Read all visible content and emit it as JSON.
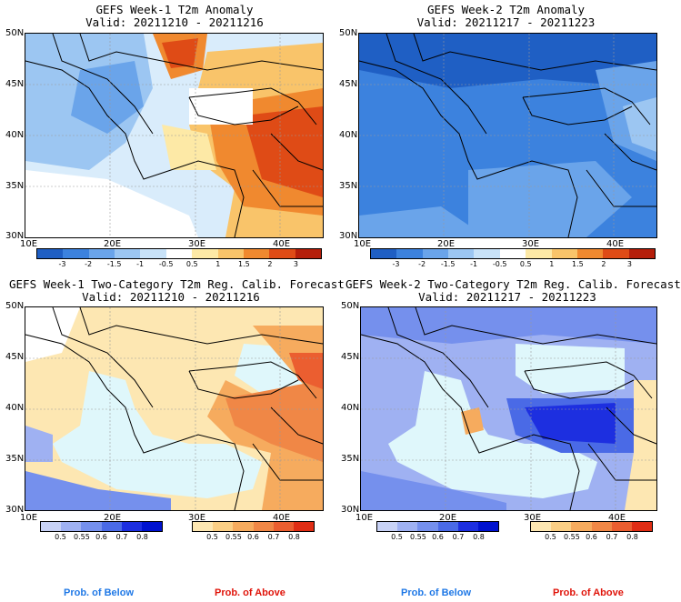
{
  "panels": [
    {
      "title": "GEFS Week-1 T2m Anomaly",
      "valid": "Valid: 20211210 - 20211216"
    },
    {
      "title": "GEFS Week-2 T2m Anomaly",
      "valid": "Valid: 20211217 - 20211223"
    },
    {
      "title": "GEFS Week-1 Two-Category T2m Reg. Calib. Forecast",
      "valid": "Valid: 20211210 - 20211216"
    },
    {
      "title": "GEFS Week-2 Two-Category T2m Reg. Calib. Forecast",
      "valid": "Valid: 20211217 - 20211223"
    }
  ],
  "lat_labels": [
    "50N",
    "45N",
    "40N",
    "35N",
    "30N"
  ],
  "lon_labels": [
    "10E",
    "20E",
    "30E",
    "40E"
  ],
  "anomaly_colorbar": {
    "labels": [
      "-3",
      "-2",
      "-1.5",
      "-1",
      "-0.5",
      "0.5",
      "1",
      "1.5",
      "2",
      "3"
    ],
    "colors": [
      "#1f5fc4",
      "#3c82de",
      "#6aa4ea",
      "#9cc6f2",
      "#c8e2f8",
      "#ffffff",
      "#fde9a6",
      "#f9c46a",
      "#f0892f",
      "#df4b16",
      "#b51e0a"
    ]
  },
  "below_colorbar": {
    "labels": [
      "0.5",
      "0.55",
      "0.6",
      "0.7",
      "0.8"
    ],
    "colors": [
      "#c8d2f6",
      "#9fb1f2",
      "#7590ed",
      "#4a6ae6",
      "#1d2fe0",
      "#0012cf"
    ]
  },
  "above_colorbar": {
    "labels": [
      "0.5",
      "0.55",
      "0.6",
      "0.7",
      "0.8"
    ],
    "colors": [
      "#fde7b2",
      "#fbcf85",
      "#f6ab5e",
      "#f08746",
      "#eb5e30",
      "#e02d14"
    ]
  },
  "legend": {
    "below": "Prob. of Below",
    "above": "Prob. of Above",
    "below_color": "#1f78e6",
    "above_color": "#e0140a"
  }
}
